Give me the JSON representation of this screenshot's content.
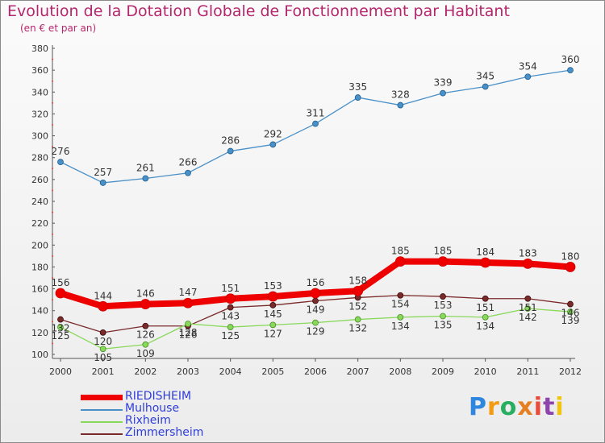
{
  "title": "Evolution de la Dotation Globale de Fonctionnement par Habitant",
  "subtitle": "(en € et par an)",
  "logo": {
    "text": "Proxiti",
    "colors": [
      "#2e86de",
      "#f39c12",
      "#27ae60",
      "#e67e22",
      "#e74c3c",
      "#8e44ad",
      "#f1c40f"
    ]
  },
  "chart_data": {
    "type": "line",
    "title": "Evolution de la Dotation Globale de Fonctionnement par Habitant",
    "subtitle": "(en € et par an)",
    "x": [
      2000,
      2001,
      2002,
      2003,
      2004,
      2005,
      2006,
      2007,
      2008,
      2009,
      2010,
      2011,
      2012
    ],
    "ylim": [
      100,
      380
    ],
    "yticks": [
      100,
      120,
      140,
      160,
      180,
      200,
      220,
      240,
      260,
      280,
      300,
      320,
      340,
      360,
      380
    ],
    "grid": false,
    "legend_position": "bottom-left",
    "series": [
      {
        "name": "RIEDISHEIM",
        "color": "#ee0000",
        "values": [
          156,
          144,
          146,
          147,
          151,
          153,
          156,
          158,
          185,
          185,
          184,
          183,
          180
        ]
      },
      {
        "name": "Mulhouse",
        "color": "#4a90c8",
        "values": [
          276,
          257,
          261,
          266,
          286,
          292,
          311,
          335,
          328,
          339,
          345,
          354,
          360
        ]
      },
      {
        "name": "Rixheim",
        "color": "#88d85a",
        "values": [
          125,
          105,
          109,
          128,
          125,
          127,
          129,
          132,
          134,
          135,
          134,
          142,
          139
        ]
      },
      {
        "name": "Zimmersheim",
        "color": "#7a2a2a",
        "values": [
          132,
          120,
          126,
          126,
          143,
          145,
          149,
          152,
          154,
          153,
          151,
          151,
          146
        ]
      }
    ]
  }
}
